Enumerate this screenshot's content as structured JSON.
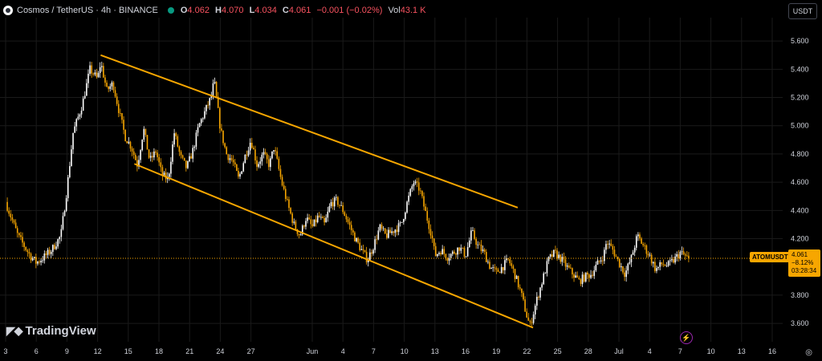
{
  "header": {
    "symbol_title": "Cosmos / TetherUS · 4h · BINANCE",
    "open_label": "O",
    "open": "4.062",
    "high_label": "H",
    "high": "4.070",
    "low_label": "L",
    "low": "4.034",
    "close_label": "C",
    "close": "4.061",
    "change": "−0.001 (−0.02%)",
    "volume_label": "Vol",
    "volume": "43.1 K"
  },
  "currency_button": "USDT",
  "brand": "TradingView",
  "brand_mark_icon": "tradingview-logo-icon",
  "symbol_tag": "ATOMUSDT",
  "price_tag": {
    "price": "4.061",
    "change": "−8.12%",
    "countdown": "03:28:34"
  },
  "colors": {
    "up": "#ffffff",
    "down": "#f7a600",
    "channel": "#f7a600",
    "grid": "#1a1a1a",
    "background": "#000000"
  },
  "chart_data": {
    "type": "candlestick",
    "title": "Cosmos / TetherUS · 4h · BINANCE",
    "y_ticks": [
      "5.600",
      "5.400",
      "5.200",
      "5.000",
      "4.800",
      "4.600",
      "4.400",
      "4.200",
      "3.800",
      "3.600"
    ],
    "ylim": [
      3.47,
      5.72
    ],
    "x_ticks": [
      "3",
      "6",
      "9",
      "12",
      "15",
      "18",
      "21",
      "24",
      "27",
      "Jun",
      "4",
      "7",
      "10",
      "13",
      "16",
      "19",
      "22",
      "25",
      "28",
      "Jul",
      "4",
      "7",
      "10",
      "13",
      "16"
    ],
    "x_tick_index": [
      0,
      1,
      2,
      3,
      4,
      5,
      6,
      7,
      8,
      10,
      11,
      12,
      13,
      14,
      15,
      16,
      17,
      18,
      19,
      20,
      21,
      22,
      23,
      24,
      25
    ],
    "last_price": 4.061,
    "price_path": [
      [
        0,
        4.46
      ],
      [
        0.4,
        4.22
      ],
      [
        0.8,
        4.08
      ],
      [
        1.0,
        4.03
      ],
      [
        1.2,
        4.06
      ],
      [
        1.5,
        4.12
      ],
      [
        1.8,
        4.22
      ],
      [
        2.0,
        4.55
      ],
      [
        2.2,
        4.95
      ],
      [
        2.5,
        5.15
      ],
      [
        2.75,
        5.4
      ],
      [
        3.0,
        5.33
      ],
      [
        3.1,
        5.45
      ],
      [
        3.3,
        5.25
      ],
      [
        3.5,
        5.3
      ],
      [
        3.7,
        5.1
      ],
      [
        3.9,
        4.92
      ],
      [
        4.1,
        4.85
      ],
      [
        4.3,
        4.72
      ],
      [
        4.5,
        4.98
      ],
      [
        4.7,
        4.75
      ],
      [
        4.9,
        4.82
      ],
      [
        5.1,
        4.65
      ],
      [
        5.3,
        4.62
      ],
      [
        5.5,
        4.95
      ],
      [
        5.7,
        4.78
      ],
      [
        5.9,
        4.7
      ],
      [
        6.1,
        4.82
      ],
      [
        6.3,
        5.0
      ],
      [
        6.5,
        5.1
      ],
      [
        6.7,
        5.2
      ],
      [
        6.8,
        5.32
      ],
      [
        7.0,
        4.98
      ],
      [
        7.2,
        4.8
      ],
      [
        7.4,
        4.75
      ],
      [
        7.6,
        4.62
      ],
      [
        7.8,
        4.78
      ],
      [
        8.0,
        4.9
      ],
      [
        8.2,
        4.72
      ],
      [
        8.4,
        4.8
      ],
      [
        8.6,
        4.72
      ],
      [
        8.75,
        4.85
      ],
      [
        9.0,
        4.6
      ],
      [
        9.2,
        4.44
      ],
      [
        9.4,
        4.3
      ],
      [
        9.6,
        4.22
      ],
      [
        9.8,
        4.35
      ],
      [
        10.0,
        4.28
      ],
      [
        10.2,
        4.36
      ],
      [
        10.4,
        4.3
      ],
      [
        10.6,
        4.45
      ],
      [
        10.8,
        4.47
      ],
      [
        11.0,
        4.4
      ],
      [
        11.2,
        4.3
      ],
      [
        11.4,
        4.2
      ],
      [
        11.6,
        4.12
      ],
      [
        11.8,
        4.05
      ],
      [
        12.0,
        4.15
      ],
      [
        12.2,
        4.28
      ],
      [
        12.4,
        4.22
      ],
      [
        12.6,
        4.25
      ],
      [
        12.9,
        4.3
      ],
      [
        13.1,
        4.46
      ],
      [
        13.3,
        4.6
      ],
      [
        13.5,
        4.55
      ],
      [
        13.7,
        4.38
      ],
      [
        13.9,
        4.22
      ],
      [
        14.0,
        4.08
      ],
      [
        14.2,
        4.12
      ],
      [
        14.4,
        4.07
      ],
      [
        14.6,
        4.1
      ],
      [
        14.8,
        4.14
      ],
      [
        15.0,
        4.08
      ],
      [
        15.2,
        4.25
      ],
      [
        15.4,
        4.15
      ],
      [
        15.6,
        4.1
      ],
      [
        15.8,
        4.0
      ],
      [
        16.0,
        3.96
      ],
      [
        16.2,
        4.0
      ],
      [
        16.4,
        4.05
      ],
      [
        16.6,
        3.95
      ],
      [
        16.8,
        3.82
      ],
      [
        17.0,
        3.65
      ],
      [
        17.1,
        3.58
      ],
      [
        17.3,
        3.75
      ],
      [
        17.5,
        3.9
      ],
      [
        17.7,
        4.05
      ],
      [
        17.9,
        4.1
      ],
      [
        18.1,
        4.06
      ],
      [
        18.3,
        4.0
      ],
      [
        18.5,
        3.95
      ],
      [
        18.7,
        3.9
      ],
      [
        18.9,
        3.93
      ],
      [
        19.1,
        3.95
      ],
      [
        19.3,
        4.02
      ],
      [
        19.5,
        4.08
      ],
      [
        19.6,
        4.18
      ],
      [
        19.8,
        4.12
      ],
      [
        20.0,
        4.03
      ],
      [
        20.2,
        3.95
      ],
      [
        20.4,
        4.06
      ],
      [
        20.6,
        4.22
      ],
      [
        20.8,
        4.15
      ],
      [
        21.0,
        4.08
      ],
      [
        21.2,
        3.98
      ],
      [
        21.4,
        4.02
      ],
      [
        21.6,
        4.01
      ],
      [
        21.8,
        4.05
      ],
      [
        22.0,
        4.1
      ],
      [
        22.2,
        4.07
      ],
      [
        22.3,
        4.06
      ]
    ],
    "channel_upper": [
      [
        3.1,
        5.5
      ],
      [
        16.7,
        4.42
      ]
    ],
    "channel_lower": [
      [
        4.2,
        4.73
      ],
      [
        17.2,
        3.57
      ]
    ]
  }
}
